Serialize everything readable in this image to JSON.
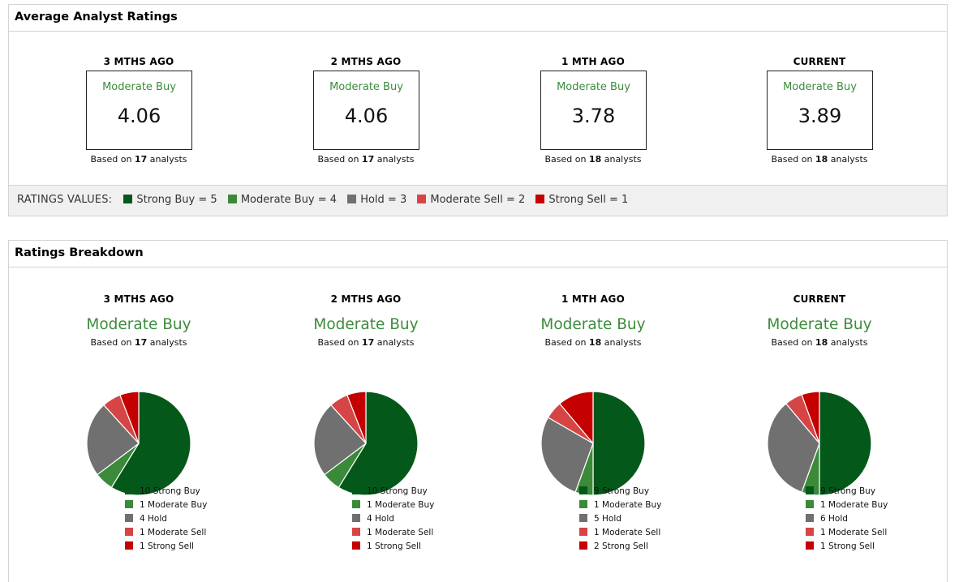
{
  "colors": {
    "strong_buy": "#04591a",
    "moderate_buy": "#3a8a3a",
    "hold": "#707070",
    "moderate_sell": "#d64545",
    "strong_sell": "#c40000",
    "rating_text": "#3c8c3c"
  },
  "average": {
    "title": "Average Analyst Ratings",
    "periods": [
      {
        "label": "3 MTHS AGO",
        "rating": "Moderate Buy",
        "value": "4.06",
        "based_prefix": "Based on ",
        "count": "17",
        "based_suffix": " analysts"
      },
      {
        "label": "2 MTHS AGO",
        "rating": "Moderate Buy",
        "value": "4.06",
        "based_prefix": "Based on ",
        "count": "17",
        "based_suffix": " analysts"
      },
      {
        "label": "1 MTH AGO",
        "rating": "Moderate Buy",
        "value": "3.78",
        "based_prefix": "Based on ",
        "count": "18",
        "based_suffix": " analysts"
      },
      {
        "label": "CURRENT",
        "rating": "Moderate Buy",
        "value": "3.89",
        "based_prefix": "Based on ",
        "count": "18",
        "based_suffix": " analysts"
      }
    ],
    "values_title": "RATINGS VALUES:",
    "values": [
      {
        "label": "Strong Buy = 5",
        "color": "#04591a"
      },
      {
        "label": "Moderate Buy = 4",
        "color": "#3a8a3a"
      },
      {
        "label": "Hold = 3",
        "color": "#707070"
      },
      {
        "label": "Moderate Sell = 2",
        "color": "#d64545"
      },
      {
        "label": "Strong Sell = 1",
        "color": "#c40000"
      }
    ]
  },
  "breakdown": {
    "title": "Ratings Breakdown",
    "periods": [
      {
        "label": "3 MTHS AGO",
        "rating": "Moderate Buy",
        "based_prefix": "Based on ",
        "count": "17",
        "based_suffix": " analysts",
        "legend": [
          "10 Strong Buy",
          "1 Moderate Buy",
          "4 Hold",
          "1 Moderate Sell",
          "1 Strong Sell"
        ]
      },
      {
        "label": "2 MTHS AGO",
        "rating": "Moderate Buy",
        "based_prefix": "Based on ",
        "count": "17",
        "based_suffix": " analysts",
        "legend": [
          "10 Strong Buy",
          "1 Moderate Buy",
          "4 Hold",
          "1 Moderate Sell",
          "1 Strong Sell"
        ]
      },
      {
        "label": "1 MTH AGO",
        "rating": "Moderate Buy",
        "based_prefix": "Based on ",
        "count": "18",
        "based_suffix": " analysts",
        "legend": [
          "9 Strong Buy",
          "1 Moderate Buy",
          "5 Hold",
          "1 Moderate Sell",
          "2 Strong Sell"
        ]
      },
      {
        "label": "CURRENT",
        "rating": "Moderate Buy",
        "based_prefix": "Based on ",
        "count": "18",
        "based_suffix": " analysts",
        "legend": [
          "9 Strong Buy",
          "1 Moderate Buy",
          "6 Hold",
          "1 Moderate Sell",
          "1 Strong Sell"
        ]
      }
    ]
  },
  "chart_data": [
    {
      "type": "pie",
      "title": "3 MTHS AGO",
      "categories": [
        "Strong Buy",
        "Moderate Buy",
        "Hold",
        "Moderate Sell",
        "Strong Sell"
      ],
      "values": [
        10,
        1,
        4,
        1,
        1
      ]
    },
    {
      "type": "pie",
      "title": "2 MTHS AGO",
      "categories": [
        "Strong Buy",
        "Moderate Buy",
        "Hold",
        "Moderate Sell",
        "Strong Sell"
      ],
      "values": [
        10,
        1,
        4,
        1,
        1
      ]
    },
    {
      "type": "pie",
      "title": "1 MTH AGO",
      "categories": [
        "Strong Buy",
        "Moderate Buy",
        "Hold",
        "Moderate Sell",
        "Strong Sell"
      ],
      "values": [
        9,
        1,
        5,
        1,
        2
      ]
    },
    {
      "type": "pie",
      "title": "CURRENT",
      "categories": [
        "Strong Buy",
        "Moderate Buy",
        "Hold",
        "Moderate Sell",
        "Strong Sell"
      ],
      "values": [
        9,
        1,
        6,
        1,
        1
      ]
    }
  ]
}
